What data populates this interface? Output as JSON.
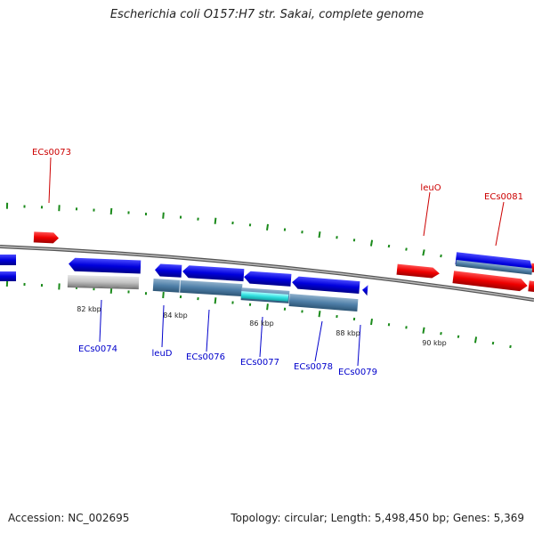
{
  "title": "Escherichia coli O157:H7 str. Sakai, complete genome",
  "accession": "Accession: NC_002695",
  "topology": "Topology: circular; Length: 5,498,450 bp; Genes: 5,369",
  "colors": {
    "forward_cds": "#ee0000",
    "reverse_cds": "#0000dd",
    "cog_group": "#4f7fa8",
    "cog_highlight": "#33e0e0",
    "cog_unclassified": "#c4c4c4",
    "backbone": "#777777",
    "tick": "#1a8a1a",
    "label_red": "#cc0000",
    "label_blue": "#0000cc"
  },
  "kbp_labels": [
    "82 kbp",
    "84 kbp",
    "86 kbp",
    "88 kbp",
    "90 kbp"
  ],
  "gene_labels_forward": [
    "ECs0073",
    "leuO",
    "ECs0081"
  ],
  "gene_labels_reverse": [
    "ECs0074",
    "leuD",
    "ECs0076",
    "ECs0077",
    "ECs0078",
    "ECs0079"
  ]
}
